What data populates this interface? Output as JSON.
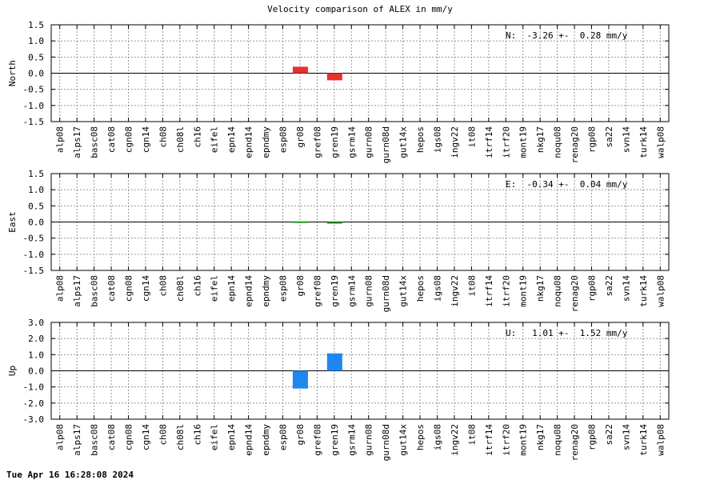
{
  "title": "Velocity comparison of ALEX in mm/y",
  "footer": "Tue Apr 16 16:28:08 2024",
  "chart_data": {
    "type": "bar",
    "categories": [
      "alp08",
      "alps17",
      "basc08",
      "cat08",
      "cgn08",
      "cgn14",
      "ch08",
      "ch08l",
      "ch16",
      "eifel",
      "epn14",
      "epnd14",
      "epndmy",
      "esp08",
      "gr08",
      "gref08",
      "gren19",
      "gsrm14",
      "gurn08",
      "gurn08d",
      "gut14x",
      "hepos",
      "igs08",
      "ingv22",
      "it08",
      "itrf14",
      "itrf20",
      "mont19",
      "nkg17",
      "noqu08",
      "renag20",
      "rgp08",
      "sa22",
      "svn14",
      "turk14",
      "walp08"
    ],
    "panels": [
      {
        "ylabel": "North",
        "ylim": [
          -1.5,
          1.5
        ],
        "yticks": [
          "1.5",
          "1.0",
          "0.5",
          "0.0",
          "-0.5",
          "-1.0",
          "-1.5"
        ],
        "color": "#e8302e",
        "summary": "N:  -3.26 +-  0.28 mm/y",
        "values": {
          "gr08": 0.2,
          "gren19": -0.22
        }
      },
      {
        "ylabel": "East",
        "ylim": [
          -1.5,
          1.5
        ],
        "yticks": [
          "1.5",
          "1.0",
          "0.5",
          "0.0",
          "-0.5",
          "-1.0",
          "-1.5"
        ],
        "color": "#1a9c1a",
        "summary": "E:  -0.34 +-  0.04 mm/y",
        "values": {
          "gr08": 0.02,
          "gren19": -0.05
        }
      },
      {
        "ylabel": "Up",
        "ylim": [
          -3.0,
          3.0
        ],
        "yticks": [
          "3.0",
          "2.0",
          "1.0",
          "0.0",
          "-1.0",
          "-2.0",
          "-3.0"
        ],
        "color": "#1e88f0",
        "summary": "U:   1.01 +-  1.52 mm/y",
        "values": {
          "gr08": -1.1,
          "gren19": 1.08
        }
      }
    ],
    "grid": true
  }
}
